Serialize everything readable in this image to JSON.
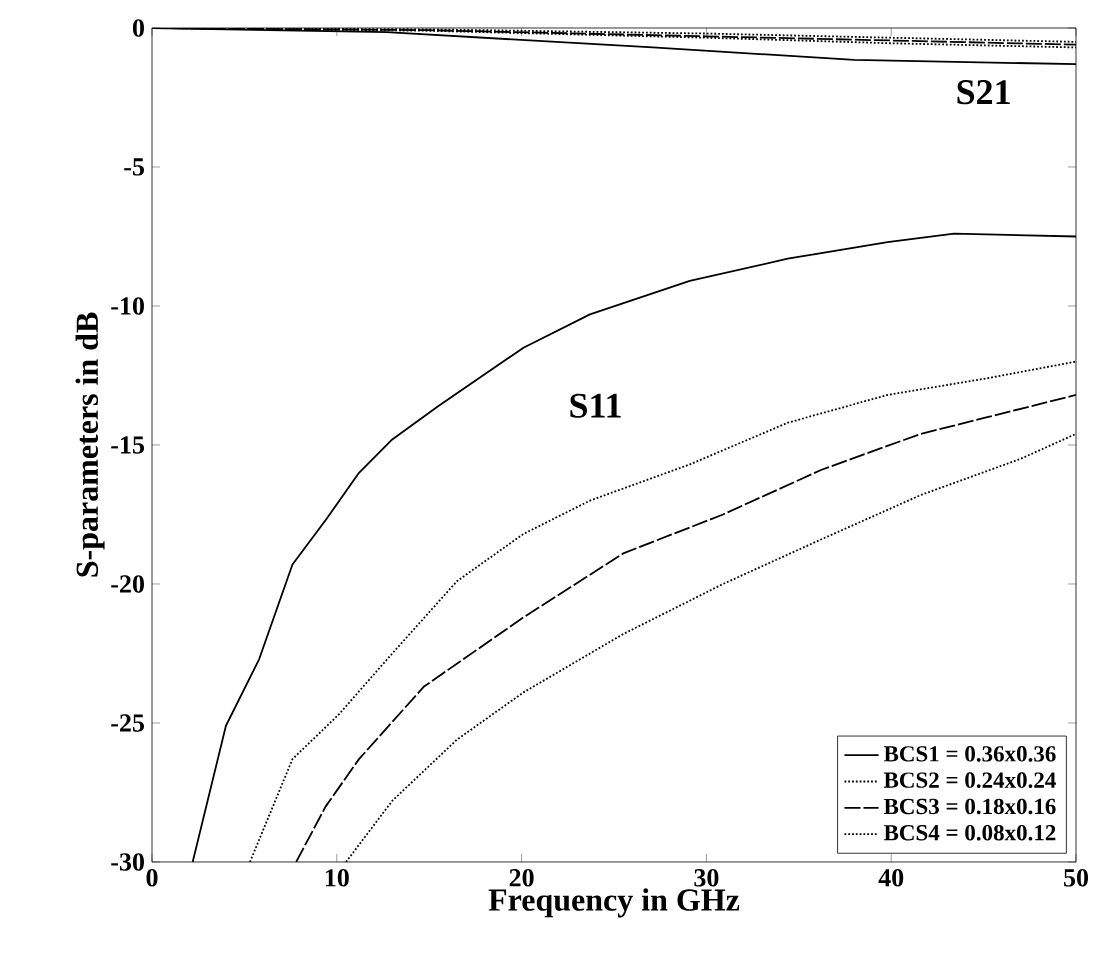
{
  "chart_data": {
    "type": "line",
    "xlabel": "Frequency in GHz",
    "ylabel": "S-parameters in dB",
    "xlim": [
      0,
      50
    ],
    "ylim": [
      -30,
      0
    ],
    "xticks": [
      0,
      10,
      20,
      30,
      40,
      50
    ],
    "yticks": [
      -30,
      -25,
      -20,
      -15,
      -10,
      -5,
      0
    ],
    "grid": false,
    "legend": "bottom right",
    "marker": "none",
    "annotations": [
      "S21",
      "S11"
    ],
    "series": [
      {
        "name": "BCS1 = 0.36x0.36",
        "color": "#000000",
        "line_style": "solid",
        "x": [
          2.2,
          4.0,
          5.8,
          7.6,
          9.4,
          11.2,
          13.0,
          15.5,
          20.1,
          23.7,
          29.1,
          34.4,
          39.8,
          43.4,
          50
        ],
        "values": [
          -30,
          -25.1,
          -22.7,
          -19.3,
          -17.7,
          -16.0,
          -14.8,
          -13.6,
          -11.5,
          -10.3,
          -9.1,
          -8.3,
          -7.7,
          -7.4,
          -7.5
        ]
      },
      {
        "name": "BCS2 = 0.24x0.24",
        "color": "#000000",
        "line_style": "dotted",
        "x": [
          5.3,
          7.6,
          10.1,
          13.0,
          16.5,
          20.1,
          23.7,
          29.1,
          34.4,
          39.8,
          45.2,
          50
        ],
        "values": [
          -30,
          -26.3,
          -24.7,
          -22.5,
          -19.9,
          -18.2,
          -17.0,
          -15.7,
          -14.2,
          -13.2,
          -12.6,
          -12.0
        ]
      },
      {
        "name": "BCS3 = 0.18x0.16",
        "color": "#000000",
        "line_style": "dashed",
        "x": [
          7.8,
          9.4,
          11.2,
          14.7,
          20.1,
          25.5,
          30.9,
          36.2,
          41.6,
          45.2,
          50
        ],
        "values": [
          -30,
          -28.0,
          -26.3,
          -23.7,
          -21.2,
          -18.9,
          -17.5,
          -15.9,
          -14.6,
          -14.0,
          -13.2
        ]
      },
      {
        "name": "BCS4 = 0.08x0.12",
        "color": "#000000",
        "line_style": "dotted",
        "x": [
          10.5,
          13.0,
          16.5,
          20.1,
          25.5,
          30.9,
          36.2,
          41.6,
          47.0,
          50
        ],
        "values": [
          -30,
          -27.8,
          -25.6,
          -23.9,
          -21.8,
          -20.0,
          -18.4,
          -16.8,
          -15.5,
          -14.6
        ]
      },
      {
        "color": "#000000",
        "line_style": "solid",
        "x": [
          0,
          12.7,
          27.1,
          38,
          50
        ],
        "values": [
          0,
          -0.15,
          -0.7,
          -1.15,
          -1.3
        ]
      },
      {
        "color": "#000000",
        "line_style": "dotted",
        "x": [
          0,
          15,
          30,
          40,
          50
        ],
        "values": [
          0,
          -0.1,
          -0.35,
          -0.55,
          -0.7
        ]
      },
      {
        "color": "#000000",
        "line_style": "dashed",
        "x": [
          0,
          15,
          30,
          40,
          50
        ],
        "values": [
          0,
          -0.08,
          -0.3,
          -0.45,
          -0.6
        ]
      },
      {
        "color": "#000000",
        "line_style": "dotted",
        "x": [
          0,
          15,
          30,
          40,
          50
        ],
        "values": [
          0,
          -0.05,
          -0.2,
          -0.35,
          -0.5
        ]
      }
    ]
  }
}
